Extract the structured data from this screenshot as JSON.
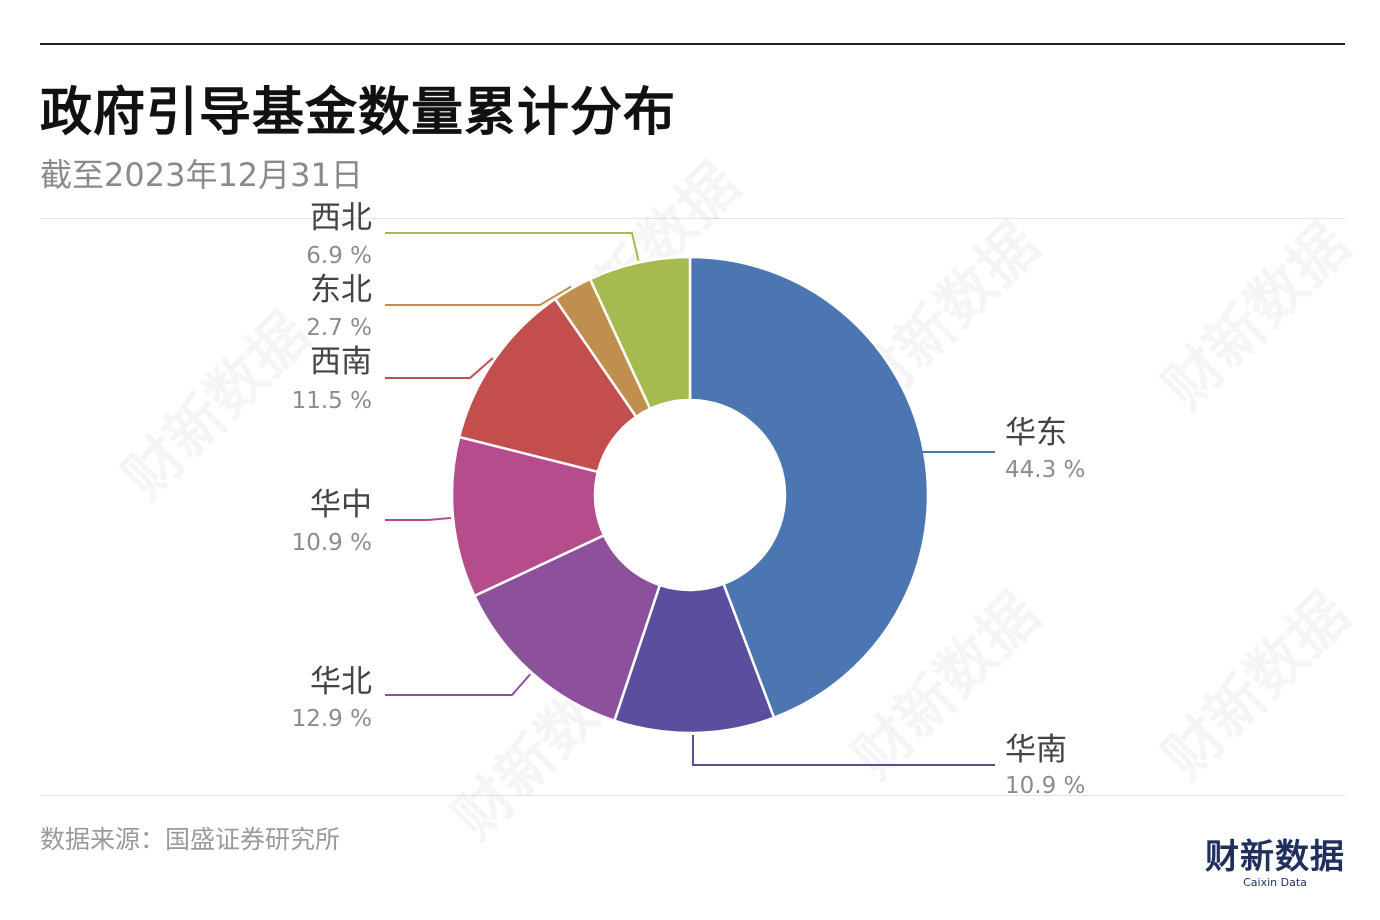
{
  "title": "政府引导基金数量累计分布",
  "subtitle": "截至2023年12月31日",
  "source": "数据来源：国盛证券研究所",
  "logo": {
    "main": "财新数据",
    "sub": "Caixin Data"
  },
  "watermark": "财新数据",
  "chart_data": {
    "type": "pie",
    "donut": true,
    "unit": "%",
    "slices": [
      {
        "name": "华东",
        "value": 44.3,
        "value_label": "44.3 %",
        "color": "#4c76b2"
      },
      {
        "name": "华南",
        "value": 10.9,
        "value_label": "10.9 %",
        "color": "#5a4f9e"
      },
      {
        "name": "华北",
        "value": 12.9,
        "value_label": "12.9 %",
        "color": "#8d519c"
      },
      {
        "name": "华中",
        "value": 10.9,
        "value_label": "10.9 %",
        "color": "#b54c8c"
      },
      {
        "name": "西南",
        "value": 11.5,
        "value_label": "11.5 %",
        "color": "#c24f4d"
      },
      {
        "name": "东北",
        "value": 2.7,
        "value_label": "2.7 %",
        "color": "#c08f4e"
      },
      {
        "name": "西北",
        "value": 6.9,
        "value_label": "6.9 %",
        "color": "#a5bb50"
      }
    ],
    "start": "top",
    "direction": "clockwise",
    "legend": "none"
  }
}
